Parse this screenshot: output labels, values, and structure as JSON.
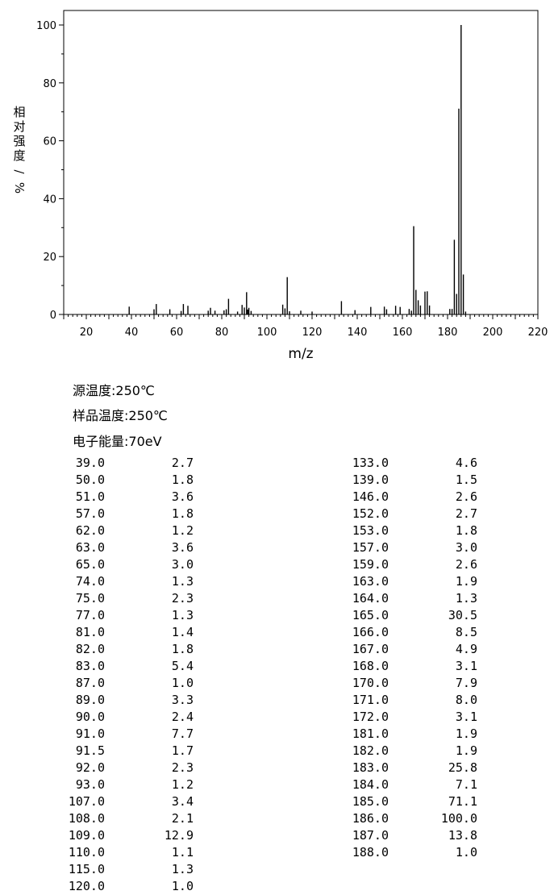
{
  "chart_data": {
    "type": "bar",
    "xlabel": "m/z",
    "ylabel": "相对强度/%",
    "xlim": [
      10,
      220
    ],
    "ylim": [
      0,
      100
    ],
    "xticks": [
      20,
      40,
      60,
      80,
      100,
      120,
      140,
      160,
      180,
      200,
      220
    ],
    "yticks": [
      0,
      20,
      40,
      60,
      80,
      100
    ],
    "grid": false,
    "x": [
      39,
      50,
      51,
      57,
      62,
      63,
      65,
      74,
      75,
      77,
      81,
      82,
      83,
      87,
      89,
      90,
      91,
      91.5,
      92,
      93,
      107,
      108,
      109,
      110,
      115,
      120,
      133,
      139,
      146,
      152,
      153,
      157,
      159,
      163,
      164,
      165,
      166,
      167,
      168,
      170,
      171,
      172,
      181,
      182,
      183,
      184,
      185,
      186,
      187,
      188
    ],
    "values": [
      2.7,
      1.8,
      3.6,
      1.8,
      1.2,
      3.6,
      3.0,
      1.3,
      2.3,
      1.3,
      1.4,
      1.8,
      5.4,
      1.0,
      3.3,
      2.4,
      7.7,
      1.7,
      2.3,
      1.2,
      3.4,
      2.1,
      12.9,
      1.1,
      1.3,
      1.0,
      4.6,
      1.5,
      2.6,
      2.7,
      1.8,
      3.0,
      2.6,
      1.9,
      1.3,
      30.5,
      8.5,
      4.9,
      3.1,
      7.9,
      8.0,
      3.1,
      1.9,
      1.9,
      25.8,
      7.1,
      71.1,
      100.0,
      13.8,
      1.0
    ]
  },
  "conditions": {
    "source_temp": "源温度:250℃",
    "sample_temp": "样品温度:250℃",
    "electron_energy": "电子能量:70eV"
  },
  "peak_table": {
    "left": [
      {
        "mz": "39.0",
        "ab": "2.7"
      },
      {
        "mz": "50.0",
        "ab": "1.8"
      },
      {
        "mz": "51.0",
        "ab": "3.6"
      },
      {
        "mz": "57.0",
        "ab": "1.8"
      },
      {
        "mz": "62.0",
        "ab": "1.2"
      },
      {
        "mz": "63.0",
        "ab": "3.6"
      },
      {
        "mz": "65.0",
        "ab": "3.0"
      },
      {
        "mz": "74.0",
        "ab": "1.3"
      },
      {
        "mz": "75.0",
        "ab": "2.3"
      },
      {
        "mz": "77.0",
        "ab": "1.3"
      },
      {
        "mz": "81.0",
        "ab": "1.4"
      },
      {
        "mz": "82.0",
        "ab": "1.8"
      },
      {
        "mz": "83.0",
        "ab": "5.4"
      },
      {
        "mz": "87.0",
        "ab": "1.0"
      },
      {
        "mz": "89.0",
        "ab": "3.3"
      },
      {
        "mz": "90.0",
        "ab": "2.4"
      },
      {
        "mz": "91.0",
        "ab": "7.7"
      },
      {
        "mz": "91.5",
        "ab": "1.7"
      },
      {
        "mz": "92.0",
        "ab": "2.3"
      },
      {
        "mz": "93.0",
        "ab": "1.2"
      },
      {
        "mz": "107.0",
        "ab": "3.4"
      },
      {
        "mz": "108.0",
        "ab": "2.1"
      },
      {
        "mz": "109.0",
        "ab": "12.9"
      },
      {
        "mz": "110.0",
        "ab": "1.1"
      },
      {
        "mz": "115.0",
        "ab": "1.3"
      },
      {
        "mz": "120.0",
        "ab": "1.0"
      }
    ],
    "right": [
      {
        "mz": "133.0",
        "ab": "4.6"
      },
      {
        "mz": "139.0",
        "ab": "1.5"
      },
      {
        "mz": "146.0",
        "ab": "2.6"
      },
      {
        "mz": "152.0",
        "ab": "2.7"
      },
      {
        "mz": "153.0",
        "ab": "1.8"
      },
      {
        "mz": "157.0",
        "ab": "3.0"
      },
      {
        "mz": "159.0",
        "ab": "2.6"
      },
      {
        "mz": "163.0",
        "ab": "1.9"
      },
      {
        "mz": "164.0",
        "ab": "1.3"
      },
      {
        "mz": "165.0",
        "ab": "30.5"
      },
      {
        "mz": "166.0",
        "ab": "8.5"
      },
      {
        "mz": "167.0",
        "ab": "4.9"
      },
      {
        "mz": "168.0",
        "ab": "3.1"
      },
      {
        "mz": "170.0",
        "ab": "7.9"
      },
      {
        "mz": "171.0",
        "ab": "8.0"
      },
      {
        "mz": "172.0",
        "ab": "3.1"
      },
      {
        "mz": "181.0",
        "ab": "1.9"
      },
      {
        "mz": "182.0",
        "ab": "1.9"
      },
      {
        "mz": "183.0",
        "ab": "25.8"
      },
      {
        "mz": "184.0",
        "ab": "7.1"
      },
      {
        "mz": "185.0",
        "ab": "71.1"
      },
      {
        "mz": "186.0",
        "ab": "100.0"
      },
      {
        "mz": "187.0",
        "ab": "13.8"
      },
      {
        "mz": "188.0",
        "ab": "1.0"
      }
    ]
  }
}
